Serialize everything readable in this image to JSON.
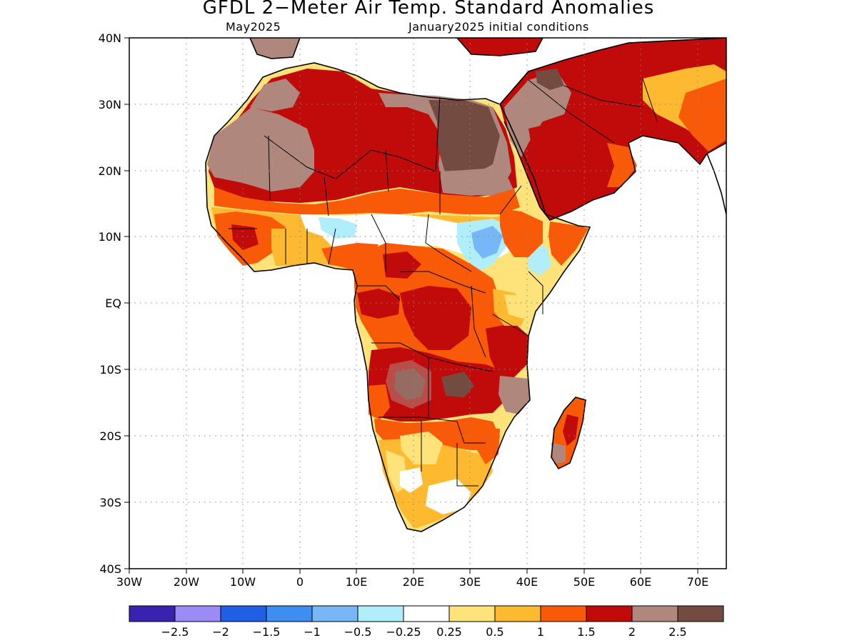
{
  "title": "GFDL 2−Meter Air Temp. Standard Anomalies",
  "subtitle_left": "May2025",
  "subtitle_right": "January2025 initial conditions",
  "map": {
    "lon_ticks": [
      "30W",
      "20W",
      "10W",
      "0",
      "10E",
      "20E",
      "30E",
      "40E",
      "50E",
      "60E",
      "70E"
    ],
    "lat_ticks": [
      "40N",
      "30N",
      "20N",
      "10N",
      "EQ",
      "10S",
      "20S",
      "30S",
      "40S"
    ],
    "lon_range": [
      -30,
      75
    ],
    "lat_range": [
      -40,
      40
    ],
    "grid": "dotted"
  },
  "colorbar": {
    "colors": [
      "#3a22b0",
      "#9b8cf5",
      "#1f5fe6",
      "#3d8ef0",
      "#78b7f7",
      "#b0eefa",
      "#ffffff",
      "#fee27a",
      "#fdb930",
      "#f95a08",
      "#c10a0a",
      "#b0877d",
      "#734b41"
    ],
    "labels": [
      "−2.5",
      "−2",
      "−1.5",
      "−1",
      "−0.5",
      "−0.25",
      "0.25",
      "0.5",
      "1",
      "1.5",
      "2",
      "2.5"
    ]
  }
}
